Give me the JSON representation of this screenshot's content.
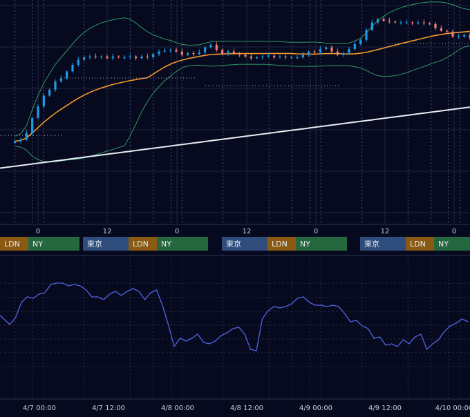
{
  "colors": {
    "background": "#070a1e",
    "grid": "#1d2540",
    "session_line": "#3c5a86",
    "candle_up": "#1e9be6",
    "candle_down": "#f07f72",
    "sma_short": "#f49a2c",
    "sma_long": "#e8ecf2",
    "bollinger": "#2f9a66",
    "oscillator": "#5165e6",
    "tick_text": "#c9cfdc",
    "session_tokyo": "#2e4d7c",
    "session_london": "#8a5a12",
    "session_ny": "#25683f"
  },
  "chart_data": [
    {
      "type": "candlestick",
      "title": "",
      "overlays": [
        "short moving average",
        "long moving average",
        "bollinger bands"
      ],
      "x_tick_labels": [
        "0",
        "12",
        "0",
        "12",
        "0",
        "12",
        "0"
      ],
      "sessions": [
        {
          "day": 0,
          "labels": [
            "東京",
            "LDN",
            "NY"
          ]
        },
        {
          "day": 1,
          "labels": [
            "東京",
            "LDN",
            "NY"
          ]
        },
        {
          "day": 2,
          "labels": [
            "東京",
            "LDN",
            "NY"
          ]
        },
        {
          "day": 3,
          "labels": [
            "東京",
            "LDN",
            "NY"
          ]
        }
      ],
      "candles_close": [
        20,
        22,
        30,
        48,
        62,
        75,
        82,
        92,
        96,
        104,
        112,
        118,
        121,
        122,
        121,
        122,
        120,
        122,
        121,
        121,
        122,
        120,
        122,
        121,
        125,
        128,
        129,
        130,
        128,
        124,
        126,
        125,
        127,
        133,
        136,
        130,
        125,
        128,
        126,
        124,
        122,
        120,
        121,
        122,
        123,
        121,
        122,
        121,
        121,
        121,
        124,
        128,
        127,
        131,
        133,
        128,
        124,
        126,
        131,
        137,
        142,
        154,
        163,
        167,
        165,
        164,
        163,
        163,
        163,
        162,
        163,
        162,
        161,
        156,
        153,
        152,
        146,
        146,
        148,
        144,
        142,
        143,
        140,
        142,
        145,
        143,
        145,
        148,
        152
      ]
    },
    {
      "type": "line",
      "title": "",
      "x_tick_labels": [
        "4/7 00:00",
        "4/7 12:00",
        "4/8 00:00",
        "4/8 12:00",
        "4/9 00:00",
        "4/9 12:00",
        "4/10 00:00"
      ],
      "values": [
        58,
        54,
        50,
        55,
        66,
        70,
        69,
        72,
        73,
        79,
        80,
        80,
        78,
        79,
        78,
        75,
        70,
        70,
        68,
        72,
        74,
        71,
        74,
        76,
        74,
        68,
        73,
        75,
        64,
        50,
        34,
        40,
        38,
        40,
        43,
        37,
        36,
        38,
        42,
        44,
        47,
        48,
        43,
        32,
        31,
        54,
        60,
        63,
        62,
        63,
        65,
        69,
        70,
        66,
        64,
        64,
        63,
        64,
        63,
        58,
        52,
        53,
        49,
        47,
        40,
        41,
        35,
        36,
        34,
        39,
        36,
        41,
        43,
        32,
        36,
        39,
        45,
        49,
        51,
        54,
        52
      ]
    }
  ]
}
